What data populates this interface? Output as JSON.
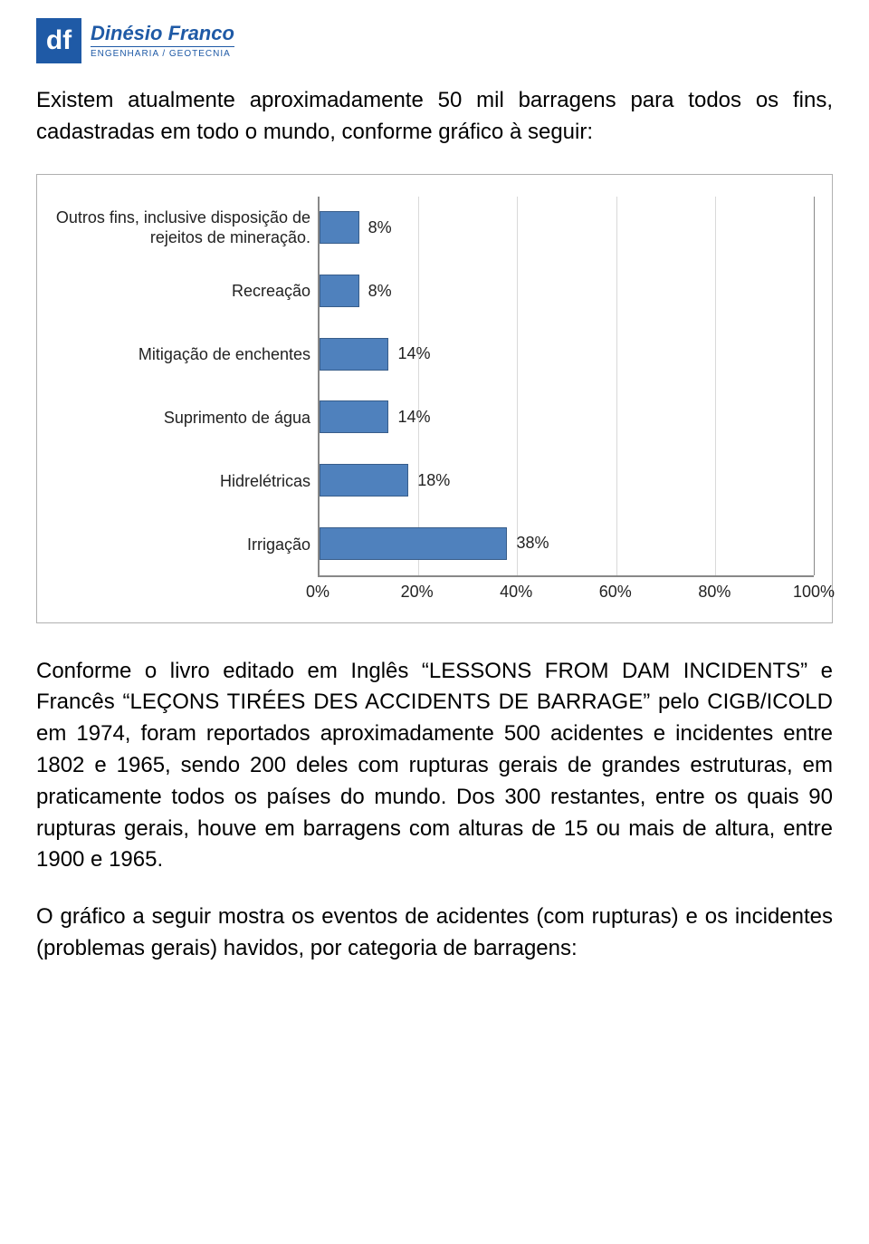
{
  "logo": {
    "initials": "df",
    "name": "Dinésio Franco",
    "subtitle": "ENGENHARIA / GEOTECNIA"
  },
  "para1": "Existem atualmente aproximadamente 50 mil barragens para todos os fins, cadastradas em todo o mundo, conforme gráfico à seguir:",
  "chart": {
    "type": "bar",
    "orientation": "horizontal",
    "xlim": [
      0,
      100
    ],
    "xtick_step": 20,
    "xtick_labels": [
      "0%",
      "20%",
      "40%",
      "60%",
      "80%",
      "100%"
    ],
    "bar_color": "#4f81bd",
    "bar_border": "#385d8a",
    "grid_color": "#d9d9d9",
    "axis_color": "#888888",
    "background_color": "#ffffff",
    "label_fontsize": 18,
    "rows": [
      {
        "label": "Outros fins, inclusive disposição de rejeitos de mineração.",
        "value": 8,
        "value_label": "8%"
      },
      {
        "label": "Recreação",
        "value": 8,
        "value_label": "8%"
      },
      {
        "label": "Mitigação de enchentes",
        "value": 14,
        "value_label": "14%"
      },
      {
        "label": "Suprimento de água",
        "value": 14,
        "value_label": "14%"
      },
      {
        "label": "Hidrelétricas",
        "value": 18,
        "value_label": "18%"
      },
      {
        "label": "Irrigação",
        "value": 38,
        "value_label": "38%"
      }
    ]
  },
  "para2": "Conforme o livro editado em Inglês “LESSONS FROM DAM INCIDENTS” e Francês “LEÇONS TIRÉES DES ACCIDENTS DE BARRAGE” pelo CIGB/ICOLD em 1974, foram reportados aproximadamente 500 acidentes e incidentes entre 1802 e 1965, sendo 200 deles com rupturas gerais de grandes estruturas, em praticamente todos os países do mundo. Dos 300 restantes, entre os quais 90 rupturas gerais, houve em barragens com alturas de 15 ou mais de altura, entre 1900 e 1965.",
  "para3": "O gráfico a seguir mostra os eventos de acidentes (com rupturas) e os incidentes (problemas gerais) havidos, por categoria de barragens:"
}
